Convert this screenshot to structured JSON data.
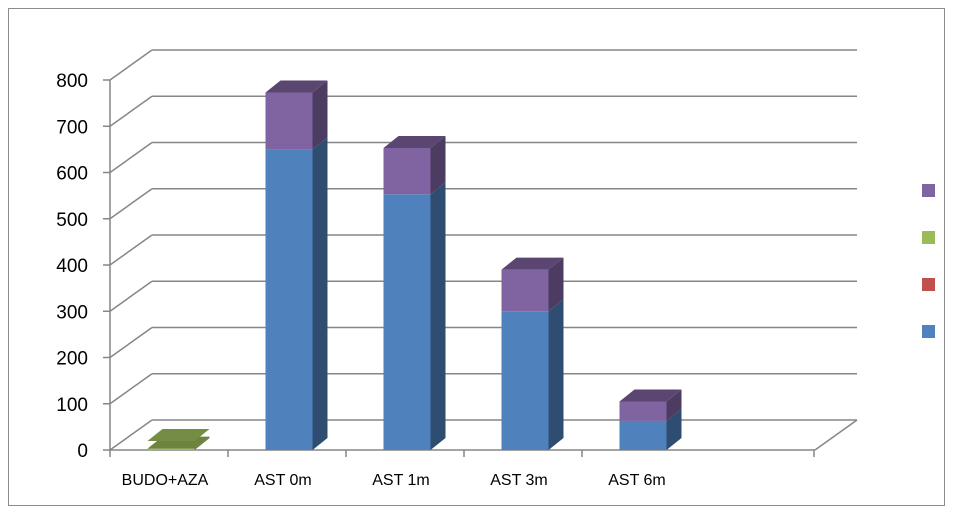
{
  "chart_data": {
    "type": "bar",
    "stacked": true,
    "three_d": true,
    "categories": [
      "BUDO+AZA",
      "AST 0m",
      "AST 1m",
      "AST 3m",
      "AST 6m"
    ],
    "series": [
      {
        "color": "#4f81bd",
        "values": [
          0,
          650,
          553,
          300,
          63
        ]
      },
      {
        "color": "#c0504d",
        "values": [
          0,
          0,
          0,
          0,
          0
        ]
      },
      {
        "color": "#9bbb59",
        "values": [
          3,
          0,
          0,
          0,
          0
        ]
      },
      {
        "color": "#8064a2",
        "values": [
          0,
          123,
          100,
          90,
          42
        ]
      }
    ],
    "legend": {
      "position": "right",
      "entries": 4
    },
    "ylim": [
      0,
      800
    ],
    "yticks": [
      "0",
      "100",
      "200",
      "300",
      "400",
      "500",
      "600",
      "700",
      "800"
    ],
    "grid": true
  }
}
